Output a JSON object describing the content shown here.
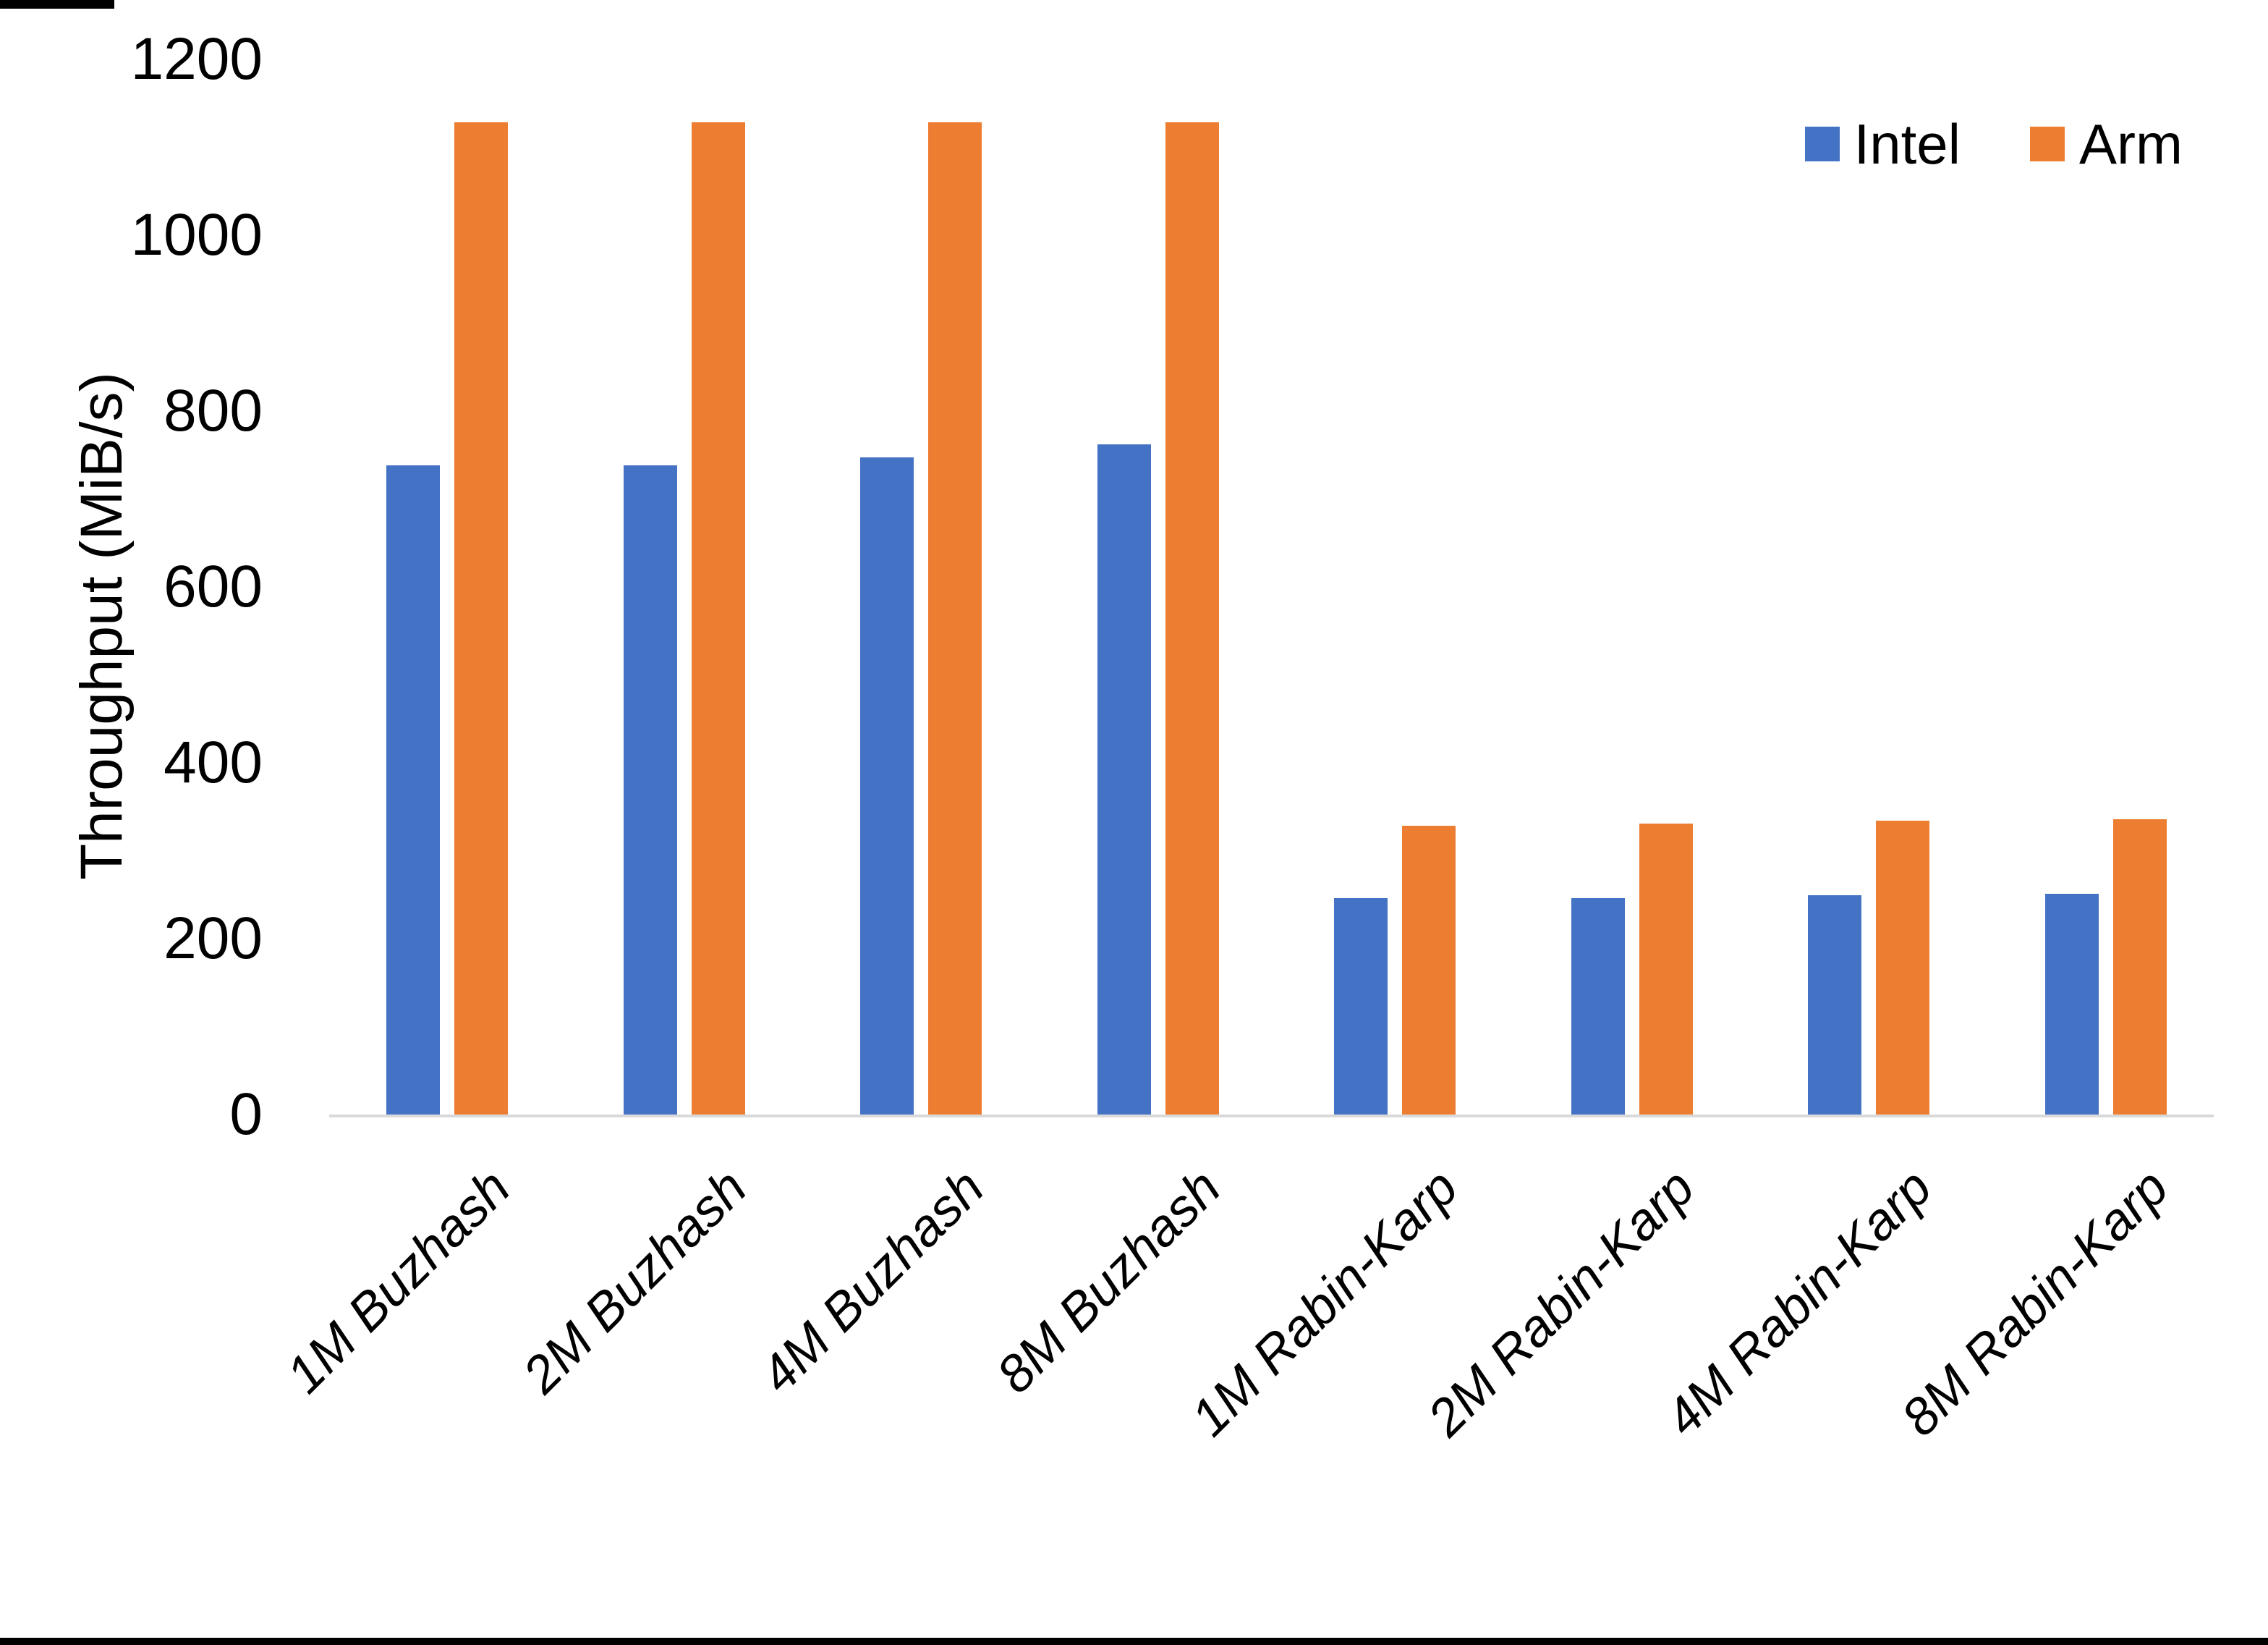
{
  "page": {
    "background_color": "#ffffff",
    "bottom_border_color": "#000000",
    "corner_artifact_color": "#000000"
  },
  "chart_data": {
    "type": "bar",
    "title": "",
    "xlabel": "",
    "ylabel": "Throughput (MiB/s)",
    "ylim": [
      0,
      1200
    ],
    "yticks": [
      0,
      200,
      400,
      600,
      800,
      1000,
      1200
    ],
    "grid": false,
    "legend_position": "top-right",
    "axis_line_color": "#d9d9d9",
    "text_color": "#000000",
    "categories": [
      "1M Buzhash",
      "2M Buzhash",
      "4M Buzhash",
      "8M Buzhash",
      "1M Rabin-Karp",
      "2M Rabin-Karp",
      "4M Rabin-Karp",
      "8M Rabin-Karp"
    ],
    "series": [
      {
        "name": "Intel",
        "color": "#4472c4",
        "values": [
          738,
          738,
          747,
          762,
          246,
          246,
          249,
          251
        ]
      },
      {
        "name": "Arm",
        "color": "#ed7d31",
        "values": [
          1128,
          1128,
          1128,
          1128,
          328,
          331,
          334,
          336
        ]
      }
    ]
  }
}
